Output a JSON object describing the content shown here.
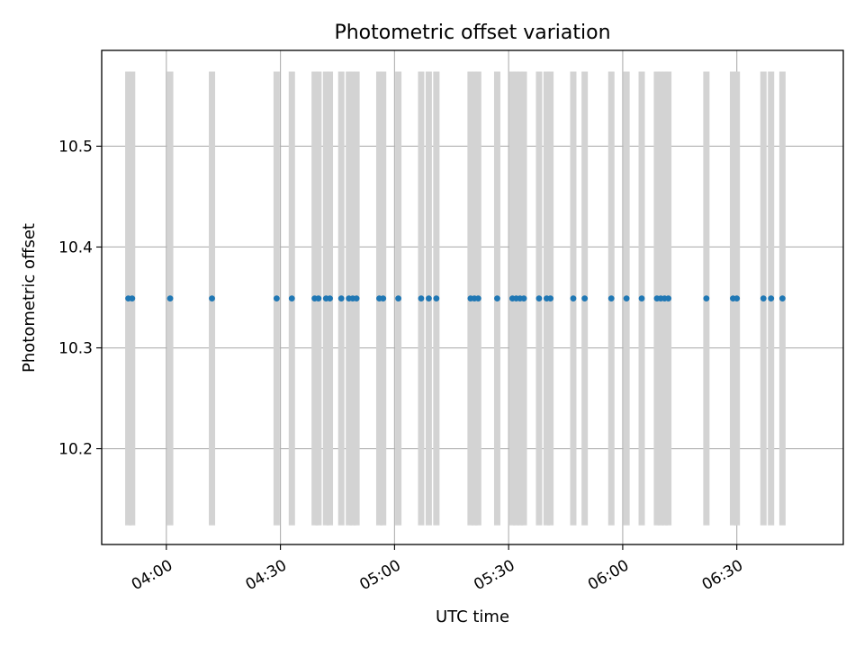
{
  "chart_data": {
    "type": "scatter",
    "title": "Photometric offset variation",
    "xlabel": "UTC time",
    "ylabel": "Photometric offset",
    "xlim": [
      "03:43",
      "06:58"
    ],
    "ylim": [
      10.105,
      10.595
    ],
    "x_ticks": [
      "04:00",
      "04:30",
      "05:00",
      "05:30",
      "06:00",
      "06:30"
    ],
    "y_ticks": [
      10.2,
      10.3,
      10.4,
      10.5
    ],
    "grid": true,
    "legend": "none",
    "point_color": "#1f77b4",
    "error_bar_color": "#d3d3d3",
    "series": [
      {
        "x": [
          "03:50",
          "03:51",
          "04:01",
          "04:12",
          "04:29",
          "04:33",
          "04:39",
          "04:40",
          "04:42",
          "04:43",
          "04:46",
          "04:48",
          "04:49",
          "04:50",
          "04:56",
          "04:57",
          "05:01",
          "05:07",
          "05:09",
          "05:11",
          "05:20",
          "05:21",
          "05:22",
          "05:27",
          "05:31",
          "05:32",
          "05:33",
          "05:34",
          "05:38",
          "05:40",
          "05:41",
          "05:47",
          "05:50",
          "05:57",
          "06:01",
          "06:05",
          "06:09",
          "06:10",
          "06:11",
          "06:12",
          "06:22",
          "06:29",
          "06:30",
          "06:37",
          "06:39",
          "06:42"
        ],
        "y": [
          10.349,
          10.349,
          10.349,
          10.349,
          10.349,
          10.349,
          10.349,
          10.349,
          10.349,
          10.349,
          10.349,
          10.349,
          10.349,
          10.349,
          10.349,
          10.349,
          10.349,
          10.349,
          10.349,
          10.349,
          10.349,
          10.349,
          10.349,
          10.349,
          10.349,
          10.349,
          10.349,
          10.349,
          10.349,
          10.349,
          10.349,
          10.349,
          10.349,
          10.349,
          10.349,
          10.349,
          10.349,
          10.349,
          10.349,
          10.349,
          10.349,
          10.349,
          10.349,
          10.349,
          10.349,
          10.349
        ],
        "y_err_low": 10.124,
        "y_err_high": 10.574
      }
    ]
  }
}
